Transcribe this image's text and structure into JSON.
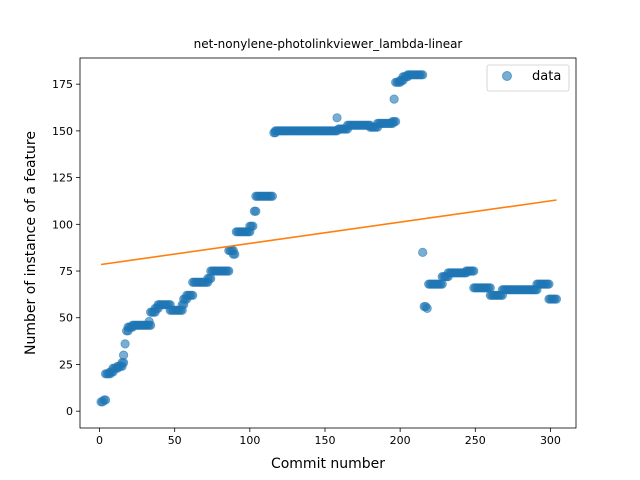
{
  "chart_data": {
    "type": "scatter",
    "title": "net-nonylene-photolinkviewer_lambda-linear",
    "xlabel": "Commit number",
    "ylabel": "Number of instance of a feature",
    "xlim": [
      -13,
      317
    ],
    "ylim": [
      -9,
      189
    ],
    "xticks": [
      0,
      50,
      100,
      150,
      200,
      250,
      300
    ],
    "yticks": [
      0,
      25,
      50,
      75,
      100,
      125,
      150,
      175
    ],
    "legend": {
      "placement": "top-right",
      "entries": [
        "data"
      ]
    },
    "colors": {
      "points": "#1f77b4",
      "fit_line": "#ff7f0e"
    },
    "fit_line": {
      "x": [
        1,
        304
      ],
      "y": [
        78.5,
        113
      ]
    },
    "segments": [
      [
        1,
        2,
        5
      ],
      [
        3,
        4,
        6
      ],
      [
        4,
        7,
        20
      ],
      [
        7,
        9,
        21
      ],
      [
        9,
        12,
        23
      ],
      [
        12,
        15,
        24
      ],
      [
        15,
        16,
        26
      ],
      [
        16,
        16,
        30
      ],
      [
        17,
        17,
        36
      ],
      [
        18,
        19,
        43
      ],
      [
        19,
        22,
        45
      ],
      [
        22,
        34,
        46
      ],
      [
        33,
        33,
        48
      ],
      [
        34,
        37,
        53
      ],
      [
        37,
        39,
        55
      ],
      [
        39,
        47,
        57
      ],
      [
        47,
        55,
        54
      ],
      [
        55,
        56,
        57
      ],
      [
        56,
        58,
        60
      ],
      [
        58,
        62,
        62
      ],
      [
        62,
        72,
        69
      ],
      [
        72,
        74,
        71
      ],
      [
        74,
        86,
        75
      ],
      [
        86,
        89,
        86
      ],
      [
        89,
        90,
        84
      ],
      [
        91,
        100,
        96
      ],
      [
        100,
        102,
        99
      ],
      [
        103,
        104,
        107
      ],
      [
        104,
        115,
        115
      ],
      [
        116,
        117,
        149
      ],
      [
        117,
        158,
        150
      ],
      [
        158,
        158,
        157
      ],
      [
        159,
        165,
        151
      ],
      [
        165,
        180,
        153
      ],
      [
        180,
        185,
        152
      ],
      [
        185,
        195,
        154
      ],
      [
        195,
        197,
        155
      ],
      [
        196,
        196,
        167
      ],
      [
        197,
        200,
        176
      ],
      [
        200,
        202,
        177
      ],
      [
        202,
        205,
        179
      ],
      [
        205,
        215,
        180
      ],
      [
        215,
        215,
        85
      ],
      [
        216,
        217,
        56
      ],
      [
        218,
        218,
        55
      ],
      [
        219,
        228,
        68
      ],
      [
        228,
        232,
        72
      ],
      [
        232,
        244,
        74
      ],
      [
        244,
        249,
        75
      ],
      [
        249,
        260,
        66
      ],
      [
        260,
        268,
        62
      ],
      [
        268,
        291,
        65
      ],
      [
        291,
        299,
        68
      ],
      [
        299,
        304,
        60
      ]
    ]
  }
}
